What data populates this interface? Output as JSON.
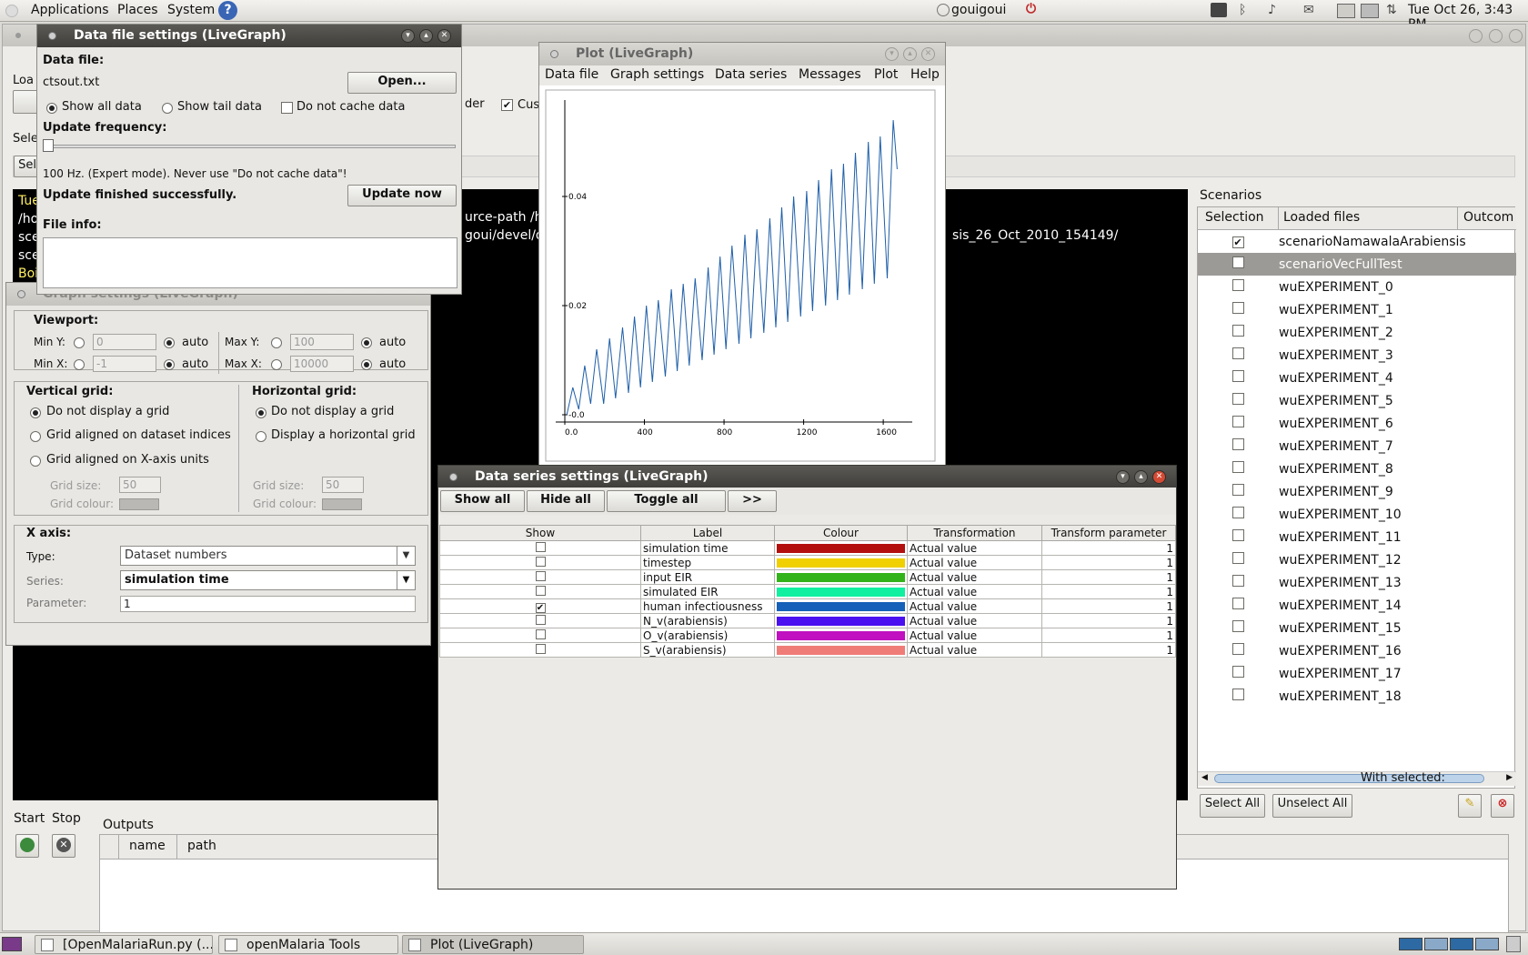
{
  "top_panel": {
    "menus": [
      "Applications",
      "Places",
      "System"
    ],
    "user": "gouigoui",
    "datetime": "Tue Oct 26,  3:43 PM"
  },
  "taskbar": {
    "items": [
      "[OpenMalariaRun.py (...",
      "openMalaria Tools",
      "Plot (LiveGraph)"
    ]
  },
  "main_window": {
    "load_label": "Loa",
    "select_label": "Sele",
    "sel_button": "Sel",
    "order_text": "der",
    "custom_text": "Cus",
    "console_lines": [
      "Tue",
      "/ho",
      "sce",
      "sce",
      "Boi"
    ],
    "console_fragments": [
      "urce-path /ho",
      "goui/devel/de",
      "sis_26_Oct_2010_154149/"
    ],
    "start_label": "Start",
    "stop_label": "Stop",
    "outputs_label": "Outputs",
    "outputs_columns": [
      "name",
      "path"
    ],
    "scenarios": {
      "title": "Scenarios",
      "columns": [
        "Selection",
        "Loaded files",
        "Outcom"
      ],
      "rows": [
        {
          "name": "scenarioNamawalaArabiensis",
          "checked": true,
          "highlight": false
        },
        {
          "name": "scenarioVecFullTest",
          "checked": false,
          "highlight": true
        },
        {
          "name": "wuEXPERIMENT_0",
          "checked": false,
          "highlight": false
        },
        {
          "name": "wuEXPERIMENT_1",
          "checked": false,
          "highlight": false
        },
        {
          "name": "wuEXPERIMENT_2",
          "checked": false,
          "highlight": false
        },
        {
          "name": "wuEXPERIMENT_3",
          "checked": false,
          "highlight": false
        },
        {
          "name": "wuEXPERIMENT_4",
          "checked": false,
          "highlight": false
        },
        {
          "name": "wuEXPERIMENT_5",
          "checked": false,
          "highlight": false
        },
        {
          "name": "wuEXPERIMENT_6",
          "checked": false,
          "highlight": false
        },
        {
          "name": "wuEXPERIMENT_7",
          "checked": false,
          "highlight": false
        },
        {
          "name": "wuEXPERIMENT_8",
          "checked": false,
          "highlight": false
        },
        {
          "name": "wuEXPERIMENT_9",
          "checked": false,
          "highlight": false
        },
        {
          "name": "wuEXPERIMENT_10",
          "checked": false,
          "highlight": false
        },
        {
          "name": "wuEXPERIMENT_11",
          "checked": false,
          "highlight": false
        },
        {
          "name": "wuEXPERIMENT_12",
          "checked": false,
          "highlight": false
        },
        {
          "name": "wuEXPERIMENT_13",
          "checked": false,
          "highlight": false
        },
        {
          "name": "wuEXPERIMENT_14",
          "checked": false,
          "highlight": false
        },
        {
          "name": "wuEXPERIMENT_15",
          "checked": false,
          "highlight": false
        },
        {
          "name": "wuEXPERIMENT_16",
          "checked": false,
          "highlight": false
        },
        {
          "name": "wuEXPERIMENT_17",
          "checked": false,
          "highlight": false
        },
        {
          "name": "wuEXPERIMENT_18",
          "checked": false,
          "highlight": false
        }
      ],
      "select_all": "Select All",
      "unselect_all": "Unselect All",
      "with_selected": "With selected:"
    }
  },
  "data_file_window": {
    "title": "Data file settings (LiveGraph)",
    "data_file_label": "Data file:",
    "file_name": "ctsout.txt",
    "open_button": "Open...",
    "show_all": "Show all data",
    "show_tail": "Show tail data",
    "no_cache": "Do not cache data",
    "update_freq_label": "Update frequency:",
    "freq_note": "100 Hz. (Expert mode). Never use \"Do not cache data\"!",
    "status": "Update finished successfully.",
    "update_button": "Update now",
    "file_info_label": "File info:"
  },
  "graph_settings_window": {
    "title": "Graph settings (LiveGraph)",
    "viewport": "Viewport:",
    "min_y": "Min Y:",
    "min_y_val": "0",
    "max_y": "Max Y:",
    "max_y_val": "100",
    "min_x": "Min X:",
    "min_x_val": "-1",
    "max_x": "Max X:",
    "max_x_val": "10000",
    "auto": "auto",
    "vgrid_title": "Vertical grid:",
    "vgrid_opts": [
      "Do not display a grid",
      "Grid aligned on dataset indices",
      "Grid aligned on X-axis units"
    ],
    "hgrid_title": "Horizontal grid:",
    "hgrid_opts": [
      "Do not display a grid",
      "Display a horizontal grid"
    ],
    "grid_size": "Grid size:",
    "grid_size_val": "50",
    "grid_colour": "Grid colour:",
    "xaxis_title": "X axis:",
    "type_label": "Type:",
    "type_val": "Dataset numbers",
    "series_label": "Series:",
    "series_val": "simulation time",
    "param_label": "Parameter:",
    "param_val": "1"
  },
  "plot_window": {
    "title": "Plot (LiveGraph)",
    "menu": [
      "Data file",
      "Graph settings",
      "Data series",
      "Messages",
      "Plot",
      "Help"
    ]
  },
  "chart_data": {
    "type": "line",
    "series": [
      {
        "name": "human infectiousness",
        "color": "#1f5fa8"
      }
    ],
    "y_ticks": [
      "0.04",
      "0.02",
      "-0.0"
    ],
    "x_ticks": [
      "0.0",
      "400",
      "800",
      "1200",
      "1600"
    ],
    "xlim": [
      0,
      1700
    ],
    "ylim": [
      0,
      0.055
    ],
    "peaks": [
      {
        "x": 40,
        "y": 0.005
      },
      {
        "x": 100,
        "y": 0.009
      },
      {
        "x": 160,
        "y": 0.012
      },
      {
        "x": 225,
        "y": 0.014
      },
      {
        "x": 290,
        "y": 0.016
      },
      {
        "x": 350,
        "y": 0.018
      },
      {
        "x": 410,
        "y": 0.02
      },
      {
        "x": 470,
        "y": 0.021
      },
      {
        "x": 535,
        "y": 0.023
      },
      {
        "x": 595,
        "y": 0.024
      },
      {
        "x": 655,
        "y": 0.025
      },
      {
        "x": 720,
        "y": 0.027
      },
      {
        "x": 780,
        "y": 0.029
      },
      {
        "x": 840,
        "y": 0.031
      },
      {
        "x": 905,
        "y": 0.033
      },
      {
        "x": 965,
        "y": 0.034
      },
      {
        "x": 1030,
        "y": 0.036
      },
      {
        "x": 1090,
        "y": 0.038
      },
      {
        "x": 1150,
        "y": 0.04
      },
      {
        "x": 1215,
        "y": 0.041
      },
      {
        "x": 1275,
        "y": 0.043
      },
      {
        "x": 1340,
        "y": 0.045
      },
      {
        "x": 1400,
        "y": 0.046
      },
      {
        "x": 1460,
        "y": 0.048
      },
      {
        "x": 1525,
        "y": 0.05
      },
      {
        "x": 1585,
        "y": 0.051
      },
      {
        "x": 1650,
        "y": 0.054
      }
    ],
    "troughs": [
      {
        "x": 10,
        "y": 0.0
      },
      {
        "x": 70,
        "y": 0.001
      },
      {
        "x": 130,
        "y": 0.002
      },
      {
        "x": 195,
        "y": 0.002
      },
      {
        "x": 255,
        "y": 0.003
      },
      {
        "x": 320,
        "y": 0.004
      },
      {
        "x": 380,
        "y": 0.005
      },
      {
        "x": 440,
        "y": 0.006
      },
      {
        "x": 505,
        "y": 0.007
      },
      {
        "x": 565,
        "y": 0.008
      },
      {
        "x": 625,
        "y": 0.009
      },
      {
        "x": 690,
        "y": 0.01
      },
      {
        "x": 750,
        "y": 0.011
      },
      {
        "x": 810,
        "y": 0.012
      },
      {
        "x": 875,
        "y": 0.013
      },
      {
        "x": 935,
        "y": 0.014
      },
      {
        "x": 1000,
        "y": 0.015
      },
      {
        "x": 1060,
        "y": 0.016
      },
      {
        "x": 1120,
        "y": 0.017
      },
      {
        "x": 1185,
        "y": 0.018
      },
      {
        "x": 1245,
        "y": 0.019
      },
      {
        "x": 1310,
        "y": 0.02
      },
      {
        "x": 1370,
        "y": 0.021
      },
      {
        "x": 1430,
        "y": 0.022
      },
      {
        "x": 1495,
        "y": 0.023
      },
      {
        "x": 1555,
        "y": 0.024
      },
      {
        "x": 1620,
        "y": 0.025
      },
      {
        "x": 1670,
        "y": 0.045
      }
    ]
  },
  "data_series_window": {
    "title": "Data series settings (LiveGraph)",
    "buttons": [
      "Show all",
      "Hide all",
      "Toggle all",
      ">>"
    ],
    "columns": [
      "Show",
      "Label",
      "Colour",
      "Transformation",
      "Transform parameter"
    ],
    "rows": [
      {
        "show": false,
        "label": "simulation time",
        "color": "#b40f0f",
        "transform": "Actual value",
        "param": "1"
      },
      {
        "show": false,
        "label": "timestep",
        "color": "#f0d000",
        "transform": "Actual value",
        "param": "1"
      },
      {
        "show": false,
        "label": "input EIR",
        "color": "#33b31a",
        "transform": "Actual value",
        "param": "1"
      },
      {
        "show": false,
        "label": "simulated EIR",
        "color": "#10f0a0",
        "transform": "Actual value",
        "param": "1"
      },
      {
        "show": true,
        "label": "human infectiousness",
        "color": "#1560b8",
        "transform": "Actual value",
        "param": "1"
      },
      {
        "show": false,
        "label": "N_v(arabiensis)",
        "color": "#4a10f0",
        "transform": "Actual value",
        "param": "1"
      },
      {
        "show": false,
        "label": "O_v(arabiensis)",
        "color": "#c010c0",
        "transform": "Actual value",
        "param": "1"
      },
      {
        "show": false,
        "label": "S_v(arabiensis)",
        "color": "#f07c78",
        "transform": "Actual value",
        "param": "1"
      }
    ]
  }
}
